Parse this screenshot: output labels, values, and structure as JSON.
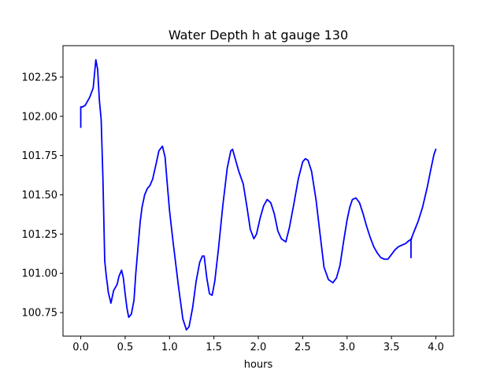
{
  "chart_data": {
    "type": "line",
    "title": "Water Depth h at gauge 130",
    "xlabel": "hours",
    "ylabel": "",
    "xlim": [
      -0.2,
      4.2
    ],
    "ylim": [
      100.6,
      102.45
    ],
    "xticks": [
      0.0,
      0.5,
      1.0,
      1.5,
      2.0,
      2.5,
      3.0,
      3.5,
      4.0
    ],
    "xtick_labels": [
      "0.0",
      "0.5",
      "1.0",
      "1.5",
      "2.0",
      "2.5",
      "3.0",
      "3.5",
      "4.0"
    ],
    "yticks": [
      100.75,
      101.0,
      101.25,
      101.5,
      101.75,
      102.0,
      102.25
    ],
    "ytick_labels": [
      "100.75",
      "101.00",
      "101.25",
      "101.50",
      "101.75",
      "102.00",
      "102.25"
    ],
    "grid": false,
    "series": [
      {
        "color": "#0000ff",
        "x": [
          0.0,
          0.0,
          0.02,
          0.05,
          0.1,
          0.14,
          0.17,
          0.19,
          0.21,
          0.23,
          0.25,
          0.27,
          0.29,
          0.3,
          0.31,
          0.34,
          0.37,
          0.39,
          0.41,
          0.43,
          0.46,
          0.48,
          0.5,
          0.52,
          0.54,
          0.57,
          0.6,
          0.62,
          0.65,
          0.67,
          0.69,
          0.72,
          0.75,
          0.78,
          0.81,
          0.85,
          0.88,
          0.92,
          0.95,
          0.97,
          1.0,
          1.04,
          1.1,
          1.15,
          1.19,
          1.22,
          1.26,
          1.3,
          1.34,
          1.37,
          1.39,
          1.42,
          1.45,
          1.48,
          1.51,
          1.55,
          1.6,
          1.65,
          1.69,
          1.71,
          1.74,
          1.78,
          1.83,
          1.87,
          1.91,
          1.95,
          1.98,
          2.02,
          2.06,
          2.1,
          2.14,
          2.18,
          2.22,
          2.26,
          2.31,
          2.35,
          2.4,
          2.45,
          2.5,
          2.53,
          2.56,
          2.6,
          2.65,
          2.7,
          2.74,
          2.79,
          2.84,
          2.88,
          2.92,
          2.96,
          3.0,
          3.03,
          3.06,
          3.1,
          3.14,
          3.18,
          3.22,
          3.26,
          3.3,
          3.34,
          3.38,
          3.42,
          3.46,
          3.5,
          3.54,
          3.58,
          3.62,
          3.66,
          3.7,
          3.71,
          3.72,
          3.72,
          3.72,
          3.73,
          3.75,
          3.8,
          3.85,
          3.9,
          3.95,
          3.98,
          4.0
        ],
        "y": [
          101.93,
          102.06,
          102.06,
          102.07,
          102.12,
          102.18,
          102.36,
          102.3,
          102.1,
          101.98,
          101.6,
          101.08,
          100.97,
          100.93,
          100.88,
          100.81,
          100.89,
          100.91,
          100.93,
          100.98,
          101.02,
          100.97,
          100.87,
          100.78,
          100.72,
          100.74,
          100.83,
          101.0,
          101.2,
          101.33,
          101.42,
          101.5,
          101.54,
          101.56,
          101.6,
          101.7,
          101.78,
          101.81,
          101.74,
          101.6,
          101.4,
          101.2,
          100.92,
          100.71,
          100.64,
          100.66,
          100.78,
          100.95,
          101.07,
          101.11,
          101.11,
          100.97,
          100.87,
          100.86,
          100.95,
          101.15,
          101.43,
          101.67,
          101.78,
          101.79,
          101.73,
          101.65,
          101.57,
          101.43,
          101.28,
          101.22,
          101.25,
          101.35,
          101.43,
          101.47,
          101.45,
          101.38,
          101.27,
          101.22,
          101.2,
          101.29,
          101.44,
          101.6,
          101.71,
          101.73,
          101.72,
          101.65,
          101.47,
          101.23,
          101.04,
          100.96,
          100.94,
          100.97,
          101.05,
          101.2,
          101.34,
          101.42,
          101.47,
          101.48,
          101.45,
          101.38,
          101.3,
          101.23,
          101.17,
          101.13,
          101.1,
          101.09,
          101.09,
          101.12,
          101.15,
          101.17,
          101.18,
          101.19,
          101.21,
          101.21,
          101.22,
          101.1,
          101.21,
          101.23,
          101.26,
          101.33,
          101.42,
          101.54,
          101.68,
          101.76,
          101.79
        ]
      }
    ]
  }
}
